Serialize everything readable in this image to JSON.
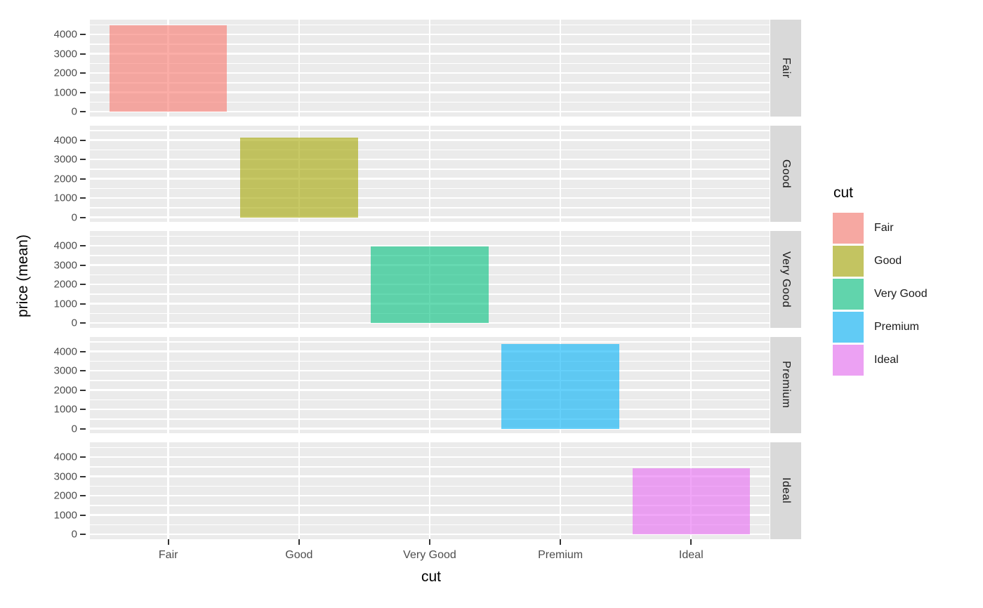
{
  "figure": {
    "background": "#FFFFFF",
    "panel_background": "#EBEBEB",
    "gridline_color": "#FFFFFF",
    "strip_background": "#D9D9D9",
    "axis_text_color": "#4D4D4D",
    "tick_mark_color": "#333333",
    "title_color": "#000000"
  },
  "chart_data": {
    "type": "bar",
    "title": "",
    "xlabel": "cut",
    "ylabel": "price (mean)",
    "categories": [
      "Fair",
      "Good",
      "Very Good",
      "Premium",
      "Ideal"
    ],
    "facets": [
      "Fair",
      "Good",
      "Very Good",
      "Premium",
      "Ideal"
    ],
    "facet_layout": "rows",
    "values": [
      4470,
      4140,
      3960,
      4390,
      3440
    ],
    "series": [
      {
        "name": "Fair",
        "category": "Fair",
        "value": 4470,
        "color": "#F8766D"
      },
      {
        "name": "Good",
        "category": "Good",
        "value": 4140,
        "color": "#A3A500"
      },
      {
        "name": "Very Good",
        "category": "Very Good",
        "value": 3960,
        "color": "#00BF7D"
      },
      {
        "name": "Premium",
        "category": "Premium",
        "value": 4390,
        "color": "#00B0F6"
      },
      {
        "name": "Ideal",
        "category": "Ideal",
        "value": 3440,
        "color": "#E76BF3"
      }
    ],
    "colors": [
      "#F8766D",
      "#A3A500",
      "#00BF7D",
      "#00B0F6",
      "#E76BF3"
    ],
    "fill_alpha": 0.6,
    "y_ticks": [
      0,
      1000,
      2000,
      3000,
      4000
    ],
    "y_minor_ticks": [
      500,
      1500,
      2500,
      3500,
      4500
    ],
    "ylim": [
      -230,
      4770
    ],
    "grid": true,
    "legend_position": "right",
    "notes": "ggplot2-style faceted bar chart; one translucent bar per facet row, facet strips on right"
  },
  "legend": {
    "title": "cut",
    "items": [
      {
        "label": "Fair",
        "color": "#F8766D"
      },
      {
        "label": "Good",
        "color": "#A3A500"
      },
      {
        "label": "Very Good",
        "color": "#00BF7D"
      },
      {
        "label": "Premium",
        "color": "#00B0F6"
      },
      {
        "label": "Ideal",
        "color": "#E76BF3"
      }
    ]
  }
}
